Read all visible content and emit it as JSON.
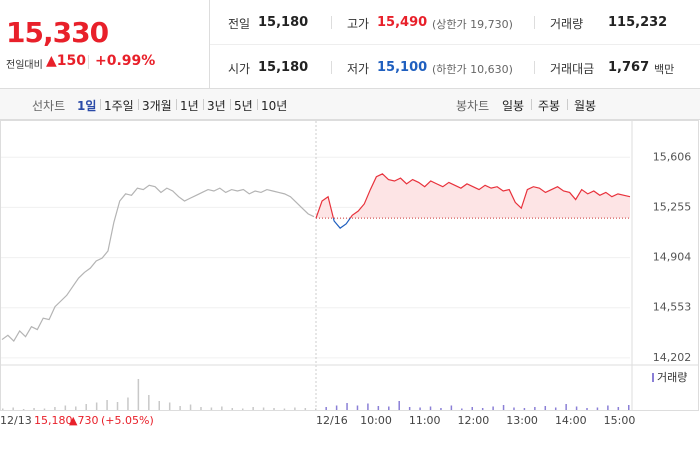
{
  "header": {
    "price": "15,330",
    "change_label": "전일대비",
    "change": "▲150",
    "change_rate": "+0.99%"
  },
  "stats": [
    [
      {
        "label": "전일",
        "value": "15,180"
      },
      {
        "label": "고가",
        "value": "15,490",
        "note": "(상한가 19,730)",
        "tone": "up"
      },
      {
        "label": "거래량",
        "value": "115,232"
      }
    ],
    [
      {
        "label": "시가",
        "value": "15,180"
      },
      {
        "label": "저가",
        "value": "15,100",
        "note": "(하한가 10,630)",
        "tone": "down"
      },
      {
        "label": "거래대금",
        "value": "1,767",
        "unit": "백만"
      }
    ]
  ],
  "tabs": {
    "line_label": "선차트",
    "line": [
      "1일",
      "1주일",
      "3개월",
      "1년",
      "3년",
      "5년",
      "10년"
    ],
    "selected": 0,
    "candle_label": "봉차트",
    "candle": [
      "일봉",
      "주봉",
      "월봉"
    ]
  },
  "chart_data": {
    "type": "line",
    "ylim": [
      14152,
      15797
    ],
    "yticks": [
      {
        "value": 15606,
        "label": "15,606"
      },
      {
        "value": 15255,
        "label": "15,255"
      },
      {
        "value": 14904,
        "label": "14,904"
      },
      {
        "value": 14553,
        "label": "14,553"
      },
      {
        "value": 14202,
        "label": "14,202"
      }
    ],
    "grid": true,
    "reference": 15180,
    "series": [
      {
        "color": "#b4b4b4",
        "values": [
          14330,
          14360,
          14320,
          14390,
          14350,
          14420,
          14400,
          14480,
          14470,
          14560,
          14600,
          14640,
          14700,
          14760,
          14800,
          14830,
          14880,
          14900,
          14950,
          15150,
          15300,
          15350,
          15340,
          15390,
          15380,
          15410,
          15400,
          15360,
          15390,
          15370,
          15330,
          15300,
          15320,
          15340,
          15360,
          15380,
          15370,
          15390,
          15360,
          15380,
          15370,
          15380,
          15350,
          15370,
          15360,
          15380,
          15370,
          15360,
          15350,
          15330,
          15290,
          15250,
          15210,
          15190
        ]
      },
      {
        "color": "#e8323c",
        "below_color": "#1f5fbf",
        "values": [
          15180,
          15300,
          15330,
          15160,
          15110,
          15140,
          15200,
          15230,
          15280,
          15380,
          15470,
          15490,
          15450,
          15440,
          15460,
          15420,
          15450,
          15430,
          15400,
          15440,
          15420,
          15400,
          15430,
          15410,
          15390,
          15420,
          15400,
          15380,
          15410,
          15390,
          15400,
          15370,
          15380,
          15290,
          15250,
          15380,
          15400,
          15390,
          15360,
          15380,
          15400,
          15370,
          15360,
          15310,
          15380,
          15350,
          15370,
          15340,
          15360,
          15330,
          15350,
          15340,
          15330
        ]
      }
    ],
    "x_labels": [
      "12/13",
      "12/16",
      "10:00",
      "11:00",
      "12:00",
      "13:00",
      "14:00",
      "15:00"
    ],
    "annotation": {
      "close": "15,180",
      "change": "▲730",
      "rate": "(+5.05%)"
    },
    "volume": {
      "name": "거래량",
      "color": "#8a7fd6",
      "lim": [
        0,
        8000
      ],
      "values": [
        300,
        500,
        200,
        400,
        300,
        600,
        900,
        700,
        1200,
        1500,
        2000,
        1600,
        2500,
        6200,
        3000,
        1800,
        1500,
        800,
        1100,
        600,
        500,
        700,
        400,
        300,
        600,
        500,
        400,
        300,
        500,
        400,
        300,
        600,
        900,
        1400,
        900,
        1300,
        800,
        700,
        1800,
        600,
        500,
        700,
        400,
        900,
        300,
        600,
        400,
        700,
        1000,
        500,
        400,
        600,
        800,
        500,
        1200,
        700,
        400,
        500,
        900,
        600,
        1000
      ]
    }
  }
}
